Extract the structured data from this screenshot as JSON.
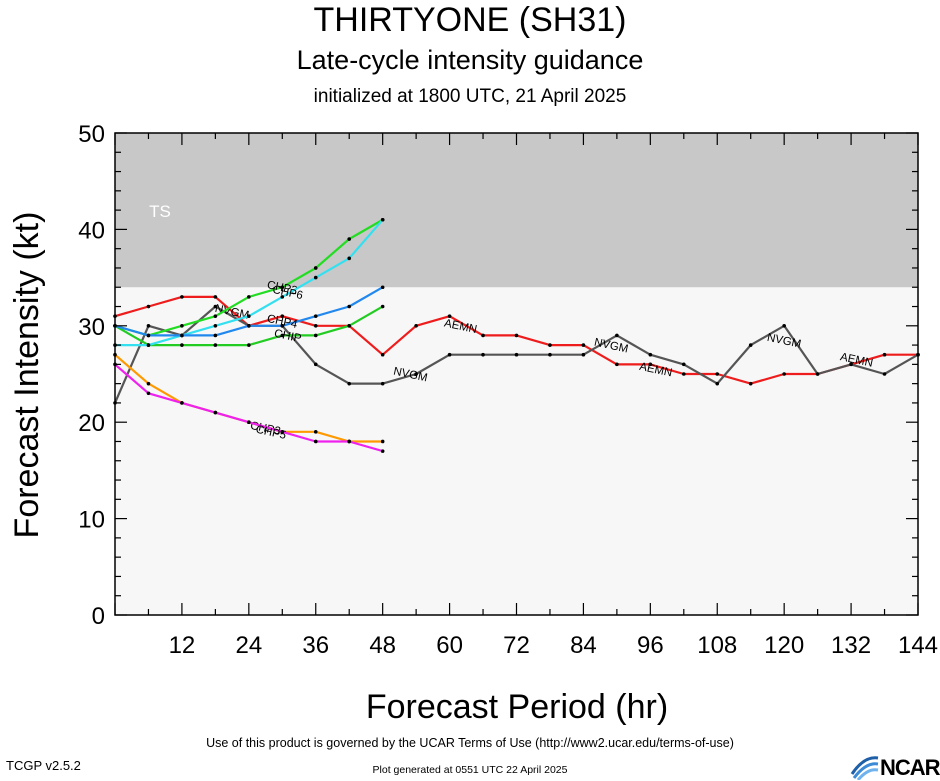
{
  "header": {
    "title": "THIRTYONE (SH31)",
    "subtitle": "Late-cycle intensity guidance",
    "initialized": "initialized at 1800 UTC, 21 April 2025"
  },
  "footer": {
    "terms": "Use of this product is governed by the UCAR Terms of Use (http://www2.ucar.edu/terms-of-use)",
    "version": "TCGP v2.5.2",
    "generated": "Plot generated at 0551 UTC   22 April 2025",
    "logo": "NCAR"
  },
  "colors": {
    "ts_band": "#c8c8c8",
    "plot_bg": "#f7f7f7",
    "AEMN": "#ee1c1c",
    "NVGM": "#555555",
    "CHIP": "#22cc22",
    "CHP2": "#22dd22",
    "CHP6": "#33e0f0",
    "CHP4": "#2288ee",
    "CHP3": "#ff9900",
    "CHP5": "#ee22ee"
  },
  "chart_data": {
    "type": "line",
    "xlabel": "Forecast Period (hr)",
    "ylabel": "Forecast Intensity (kt)",
    "xlim": [
      0,
      144
    ],
    "ylim": [
      0,
      50
    ],
    "xticks": [
      12,
      24,
      36,
      48,
      60,
      72,
      84,
      96,
      108,
      120,
      132,
      144
    ],
    "yticks": [
      0,
      10,
      20,
      30,
      40,
      50
    ],
    "bands": [
      {
        "label": "TS",
        "from": 34,
        "to": 50
      }
    ],
    "series": [
      {
        "name": "AEMN",
        "x": [
          0,
          6,
          12,
          18,
          24,
          30,
          36,
          42,
          48,
          54,
          60,
          66,
          72,
          78,
          84,
          90,
          96,
          102,
          108,
          114,
          120,
          126,
          132,
          138,
          144
        ],
        "y": [
          31,
          32,
          33,
          33,
          30,
          31,
          30,
          30,
          27,
          30,
          31,
          29,
          29,
          28,
          28,
          26,
          26,
          25,
          25,
          24,
          25,
          25,
          26,
          27,
          27
        ],
        "labels": [
          {
            "x": 62,
            "y": 30
          },
          {
            "x": 97,
            "y": 25.5
          },
          {
            "x": 133,
            "y": 26.5
          }
        ]
      },
      {
        "name": "NVGM",
        "x": [
          0,
          6,
          12,
          18,
          24,
          30,
          36,
          42,
          48,
          54,
          60,
          66,
          72,
          78,
          84,
          90,
          96,
          102,
          108,
          114,
          120,
          126,
          132,
          138,
          144
        ],
        "y": [
          22,
          30,
          29,
          32,
          30,
          30,
          26,
          24,
          24,
          25,
          27,
          27,
          27,
          27,
          27,
          29,
          27,
          26,
          24,
          28,
          30,
          25,
          26,
          25,
          27
        ],
        "labels": [
          {
            "x": 21,
            "y": 31.5
          },
          {
            "x": 53,
            "y": 25
          },
          {
            "x": 89,
            "y": 28
          },
          {
            "x": 120,
            "y": 28.5
          }
        ]
      },
      {
        "name": "CHIP",
        "x": [
          0,
          6,
          12,
          18,
          24,
          30,
          36,
          42,
          48
        ],
        "y": [
          30,
          28,
          28,
          28,
          28,
          29,
          29,
          30,
          32
        ],
        "labels": [
          {
            "x": 31,
            "y": 29
          }
        ]
      },
      {
        "name": "CHP2",
        "x": [
          0,
          6,
          12,
          18,
          24,
          30,
          36,
          42,
          48
        ],
        "y": [
          30,
          29,
          30,
          31,
          33,
          34,
          36,
          39,
          41
        ],
        "labels": [
          {
            "x": 30,
            "y": 34
          }
        ]
      },
      {
        "name": "CHP6",
        "x": [
          0,
          6,
          12,
          18,
          24,
          30,
          36,
          42,
          48
        ],
        "y": [
          28,
          28,
          29,
          30,
          31,
          33,
          35,
          37,
          41
        ],
        "labels": [
          {
            "x": 31,
            "y": 33.5
          }
        ]
      },
      {
        "name": "CHP4",
        "x": [
          0,
          6,
          12,
          18,
          24,
          30,
          36,
          42,
          48
        ],
        "y": [
          30,
          29,
          29,
          29,
          30,
          30,
          31,
          32,
          34
        ],
        "labels": [
          {
            "x": 30,
            "y": 30.5
          }
        ]
      },
      {
        "name": "CHP3",
        "x": [
          0,
          6,
          12,
          18,
          24,
          30,
          36,
          42,
          48
        ],
        "y": [
          27,
          24,
          22,
          21,
          20,
          19,
          19,
          18,
          18
        ],
        "labels": [
          {
            "x": 27,
            "y": 19.4
          }
        ]
      },
      {
        "name": "CHP5",
        "x": [
          0,
          6,
          12,
          18,
          24,
          30,
          36,
          42,
          48
        ],
        "y": [
          26,
          23,
          22,
          21,
          20,
          19,
          18,
          18,
          17
        ],
        "labels": [
          {
            "x": 28,
            "y": 19
          }
        ]
      }
    ]
  }
}
